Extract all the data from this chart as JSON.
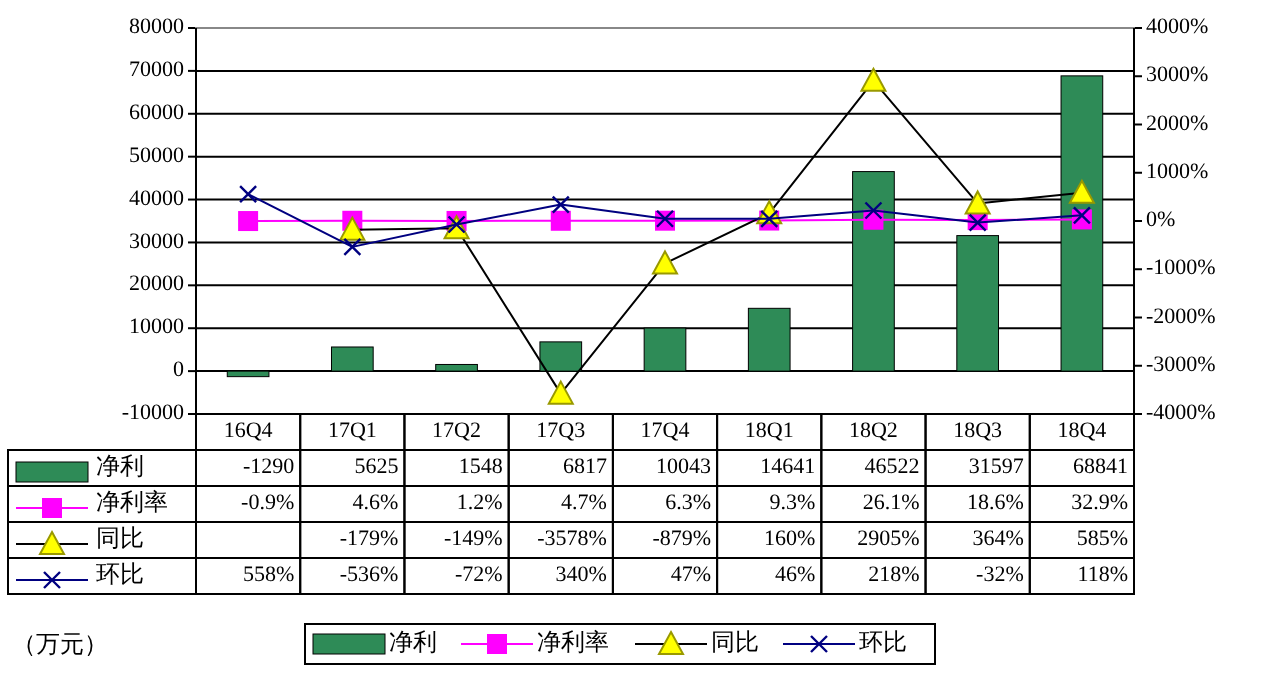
{
  "chart_data": {
    "type": "bar",
    "categories": [
      "16Q4",
      "17Q1",
      "17Q2",
      "17Q3",
      "17Q4",
      "18Q1",
      "18Q2",
      "18Q3",
      "18Q4"
    ],
    "series": [
      {
        "name": "净利",
        "color": "#2e8b57",
        "values": [
          -1290,
          5625,
          1548,
          6817,
          10043,
          14641,
          46522,
          31597,
          68841
        ],
        "value_labels": [
          "-1290",
          "5625",
          "1548",
          "6817",
          "10043",
          "14641",
          "46522",
          "31597",
          "68841"
        ]
      },
      {
        "name": "净利率",
        "type": "line",
        "axis": "y2",
        "marker": "square",
        "color": "#ff00ff",
        "values": [
          -0.9,
          4.6,
          1.2,
          4.7,
          6.3,
          9.3,
          26.1,
          18.6,
          32.9
        ],
        "value_labels": [
          "-0.9%",
          "4.6%",
          "1.2%",
          "4.7%",
          "6.3%",
          "9.3%",
          "26.1%",
          "18.6%",
          "32.9%"
        ]
      },
      {
        "name": "同比",
        "type": "line",
        "axis": "y2",
        "marker": "triangle",
        "color": "#000000",
        "values": [
          null,
          -179,
          -149,
          -3578,
          -879,
          160,
          2905,
          364,
          585
        ],
        "value_labels": [
          null,
          "-179%",
          "-149%",
          "-3578%",
          "-879%",
          "160%",
          "2905%",
          "364%",
          "585%"
        ]
      },
      {
        "name": "环比",
        "type": "line",
        "axis": "y2",
        "marker": "cross",
        "color": "#000080",
        "values": [
          558,
          -536,
          -72,
          340,
          47,
          46,
          218,
          -32,
          118
        ],
        "value_labels": [
          "558%",
          "-536%",
          "-72%",
          "340%",
          "47%",
          "46%",
          "218%",
          "-32%",
          "118%"
        ]
      }
    ],
    "ylim": [
      -10000,
      80000
    ],
    "yticks": [
      -10000,
      0,
      10000,
      20000,
      30000,
      40000,
      50000,
      60000,
      70000,
      80000
    ],
    "y2lim": [
      -4000,
      4000
    ],
    "y2ticks": [
      {
        "value": -4000,
        "label": "-4000%"
      },
      {
        "value": -3000,
        "label": "-3000%"
      },
      {
        "value": -2000,
        "label": "-2000%"
      },
      {
        "value": -1000,
        "label": "-1000%"
      },
      {
        "value": 0,
        "label": "0%"
      },
      {
        "value": 1000,
        "label": "1000%"
      },
      {
        "value": 2000,
        "label": "2000%"
      },
      {
        "value": 3000,
        "label": "3000%"
      },
      {
        "value": 4000,
        "label": "4000%"
      }
    ],
    "grid": "y",
    "legend": "bottom",
    "annotations": [
      "（万元）"
    ]
  }
}
